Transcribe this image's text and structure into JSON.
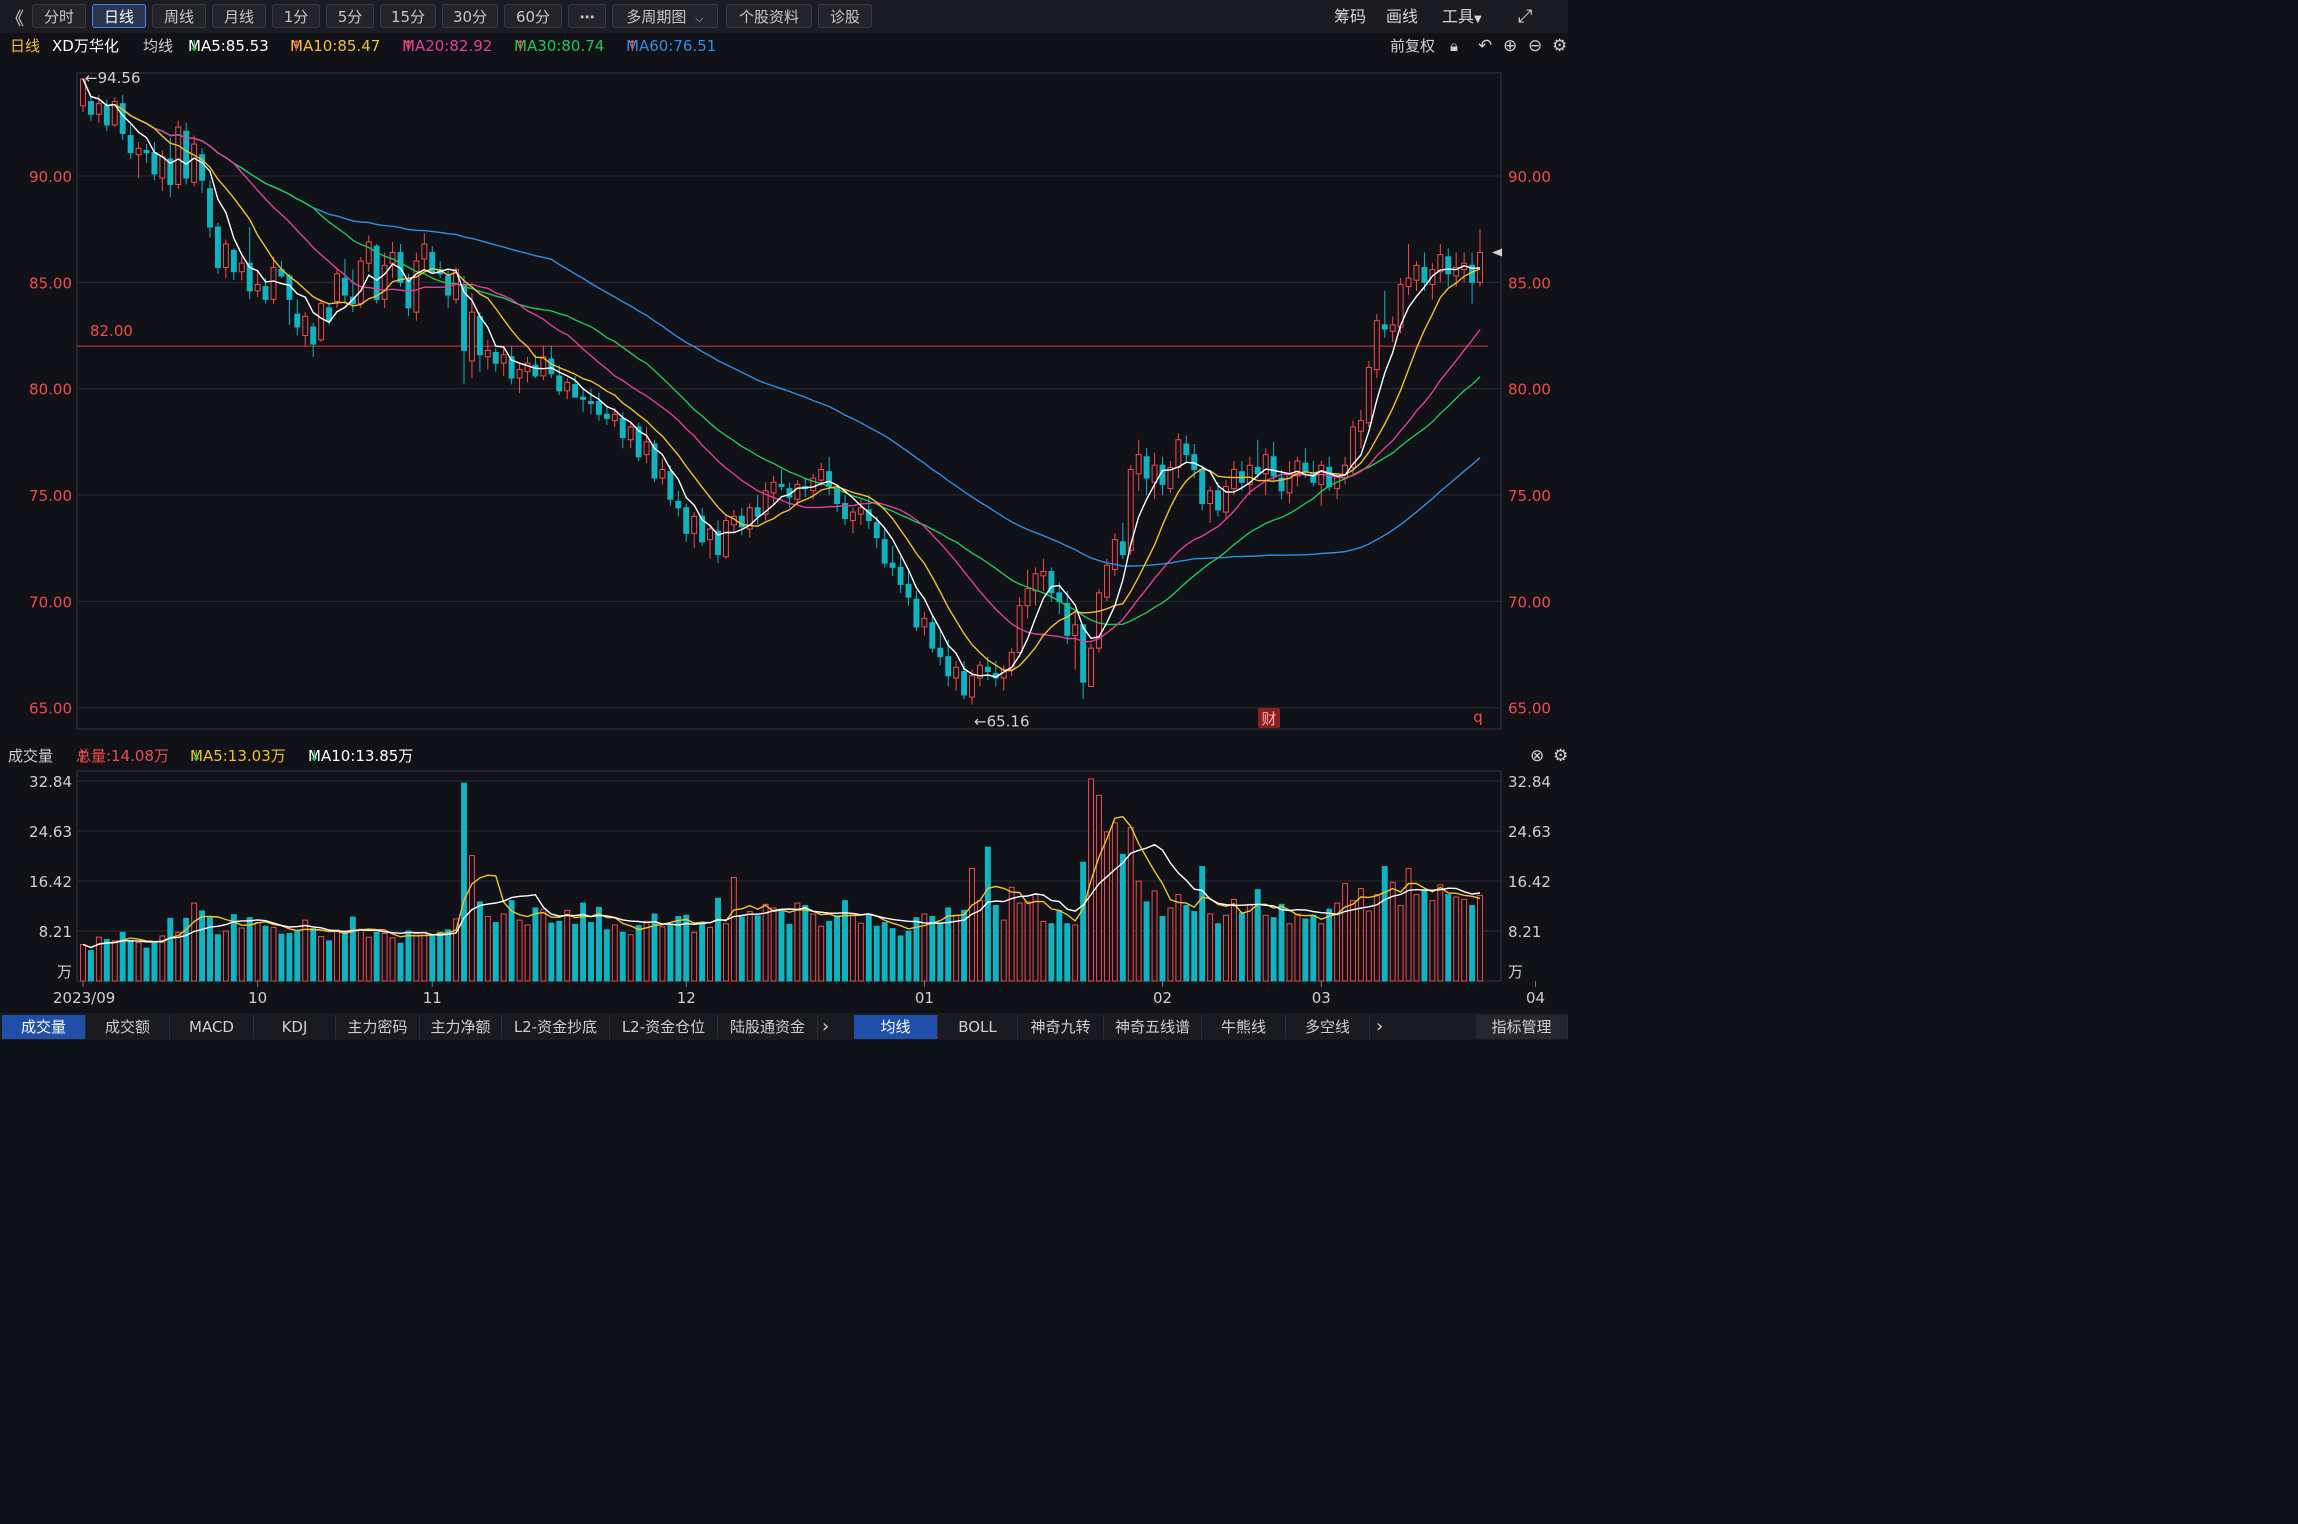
{
  "toolbar": {
    "back_icon": "double-left-chevron-icon",
    "periods": [
      "分时",
      "日线",
      "周线",
      "月线",
      "1分",
      "5分",
      "15分",
      "30分",
      "60分"
    ],
    "active_period": "日线",
    "more_label": "⋯",
    "multi_period": "多周期图",
    "stock_info": "个股资料",
    "diagnose": "诊股",
    "chips": "筹码",
    "draw": "画线",
    "tools": "工具",
    "fullscreen_icon": "expand-icon"
  },
  "legend": {
    "period": "日线",
    "stock_name": "XD万华化",
    "ma_label": "均线",
    "ma5": "MA5:85.53",
    "ma10": "MA10:85.47",
    "ma20": "MA20:82.92",
    "ma30": "MA30:80.74",
    "ma60": "MA60:76.51",
    "ma5_arrow": "↓",
    "ma10_arrow": "↑",
    "ma20_arrow": "↑",
    "ma30_arrow": "↑",
    "ma60_arrow": "↑",
    "adjust": "前复权",
    "colors": {
      "ma5": "#ffffff",
      "ma10": "#f2c12e",
      "ma20": "#e0409a",
      "ma30": "#1fc75a",
      "ma60": "#2f8ee8",
      "up": "#f24b4b",
      "down": "#11b3c0"
    }
  },
  "price_panel": {
    "y_ticks": [
      "90.00",
      "85.00",
      "80.00",
      "75.00",
      "70.00",
      "65.00"
    ],
    "high_label": "←94.56",
    "low_label": "←65.16",
    "hline_label": "82.00",
    "badge_cai": "财",
    "badge_q": "q"
  },
  "volume_panel": {
    "title": "成交量",
    "total": "总量:14.08万",
    "total_arrow": "↑",
    "ma5": "MA5:13.03万",
    "ma5_arrow": "↓",
    "ma10": "MA10:13.85万",
    "ma10_arrow": "↓",
    "y_ticks": [
      "32.84",
      "24.63",
      "16.42",
      "8.21",
      "万"
    ]
  },
  "x_axis": [
    "2023/09",
    "10",
    "11",
    "12",
    "01",
    "02",
    "03",
    "04"
  ],
  "tabs_left": [
    "成交量",
    "成交额",
    "MACD",
    "KDJ",
    "主力密码",
    "主力净额",
    "L2-资金抄底",
    "L2-资金仓位",
    "陆股通资金"
  ],
  "tabs_right": [
    "均线",
    "BOLL",
    "神奇九转",
    "神奇五线谱",
    "牛熊线",
    "多空线"
  ],
  "indicator_manage": "指标管理",
  "chart_data": {
    "type": "candlestick",
    "price_range": [
      64,
      95.5
    ],
    "volume_max": 34.5,
    "candles": [
      [
        93.3,
        94.6,
        93.0,
        94.56,
        6.0
      ],
      [
        93.5,
        93.8,
        92.6,
        92.9,
        5.0
      ],
      [
        92.9,
        93.8,
        92.5,
        93.4,
        7.2
      ],
      [
        93.3,
        93.6,
        92.1,
        92.4,
        6.8
      ],
      [
        92.4,
        93.7,
        92.3,
        93.5,
        6.6
      ],
      [
        93.4,
        93.8,
        91.7,
        92.0,
        8.0
      ],
      [
        91.9,
        92.4,
        90.8,
        91.1,
        6.6
      ],
      [
        91.0,
        91.6,
        89.9,
        91.3,
        6.3
      ],
      [
        91.2,
        91.5,
        90.6,
        91.1,
        5.4
      ],
      [
        91.1,
        91.6,
        89.8,
        90.1,
        6.2
      ],
      [
        89.9,
        91.2,
        89.3,
        90.9,
        7.4
      ],
      [
        90.8,
        91.8,
        89.0,
        89.6,
        10.3
      ],
      [
        89.6,
        92.6,
        89.4,
        92.3,
        8.0
      ],
      [
        92.1,
        92.5,
        89.6,
        89.9,
        10.3
      ],
      [
        89.7,
        91.9,
        89.5,
        91.5,
        12.8
      ],
      [
        91.0,
        91.3,
        89.2,
        89.8,
        11.5
      ],
      [
        89.4,
        89.8,
        87.1,
        87.6,
        10.4
      ],
      [
        87.6,
        87.8,
        85.4,
        85.7,
        7.6
      ],
      [
        85.7,
        87.0,
        85.2,
        86.8,
        8.2
      ],
      [
        86.5,
        86.6,
        85.1,
        85.5,
        10.9
      ],
      [
        85.5,
        86.2,
        85.1,
        85.9,
        8.7
      ],
      [
        85.9,
        87.6,
        84.2,
        84.6,
        10.4
      ],
      [
        84.6,
        85.6,
        84.3,
        84.9,
        9.6
      ],
      [
        84.8,
        85.2,
        84.0,
        84.2,
        9.0
      ],
      [
        84.2,
        86.2,
        84.0,
        85.7,
        8.8
      ],
      [
        85.6,
        86.0,
        85.2,
        85.3,
        7.7
      ],
      [
        85.3,
        85.4,
        83.0,
        84.2,
        7.8
      ],
      [
        83.5,
        84.2,
        82.5,
        82.9,
        8.2
      ],
      [
        82.5,
        83.6,
        82.0,
        83.4,
        10.0
      ],
      [
        82.9,
        83.1,
        81.5,
        82.1,
        8.6
      ],
      [
        82.3,
        84.2,
        82.2,
        84.0,
        7.3
      ],
      [
        83.8,
        84.0,
        83.0,
        83.2,
        6.6
      ],
      [
        84.1,
        85.7,
        83.8,
        85.4,
        8.4
      ],
      [
        85.2,
        86.1,
        84.0,
        84.4,
        8.0
      ],
      [
        84.3,
        85.6,
        83.6,
        84.0,
        10.5
      ],
      [
        84.0,
        86.2,
        83.8,
        86.0,
        8.5
      ],
      [
        85.9,
        87.2,
        85.5,
        86.9,
        7.2
      ],
      [
        86.7,
        86.8,
        84.0,
        84.2,
        8.0
      ],
      [
        84.2,
        86.4,
        83.8,
        85.8,
        7.8
      ],
      [
        85.9,
        86.9,
        85.2,
        86.4,
        7.1
      ],
      [
        86.4,
        86.8,
        84.8,
        85.0,
        6.2
      ],
      [
        85.1,
        85.4,
        83.4,
        83.8,
        8.2
      ],
      [
        83.6,
        86.4,
        83.2,
        86.0,
        7.8
      ],
      [
        86.1,
        87.3,
        85.6,
        86.8,
        8.0
      ],
      [
        86.4,
        86.7,
        85.4,
        85.5,
        7.3
      ],
      [
        85.6,
        86.0,
        85.2,
        85.4,
        8.0
      ],
      [
        85.3,
        85.6,
        83.8,
        84.4,
        8.4
      ],
      [
        84.2,
        85.7,
        84.0,
        85.6,
        10.2
      ],
      [
        84.9,
        85.3,
        80.2,
        81.8,
        32.5
      ],
      [
        81.3,
        84.5,
        80.5,
        83.6,
        20.6
      ],
      [
        83.4,
        83.6,
        80.8,
        81.6,
        13.0
      ],
      [
        81.5,
        82.3,
        80.9,
        81.8,
        10.6
      ],
      [
        81.7,
        81.9,
        80.8,
        81.2,
        9.6
      ],
      [
        81.2,
        81.9,
        80.6,
        81.6,
        11.0
      ],
      [
        81.5,
        82.0,
        80.2,
        80.5,
        13.2
      ],
      [
        80.5,
        81.2,
        79.8,
        80.9,
        10.0
      ],
      [
        80.8,
        81.5,
        80.3,
        81.2,
        9.2
      ],
      [
        81.1,
        81.6,
        80.5,
        80.6,
        12.0
      ],
      [
        80.6,
        82.0,
        80.4,
        81.5,
        11.8
      ],
      [
        81.4,
        82.0,
        80.5,
        80.7,
        9.5
      ],
      [
        80.6,
        81.1,
        79.7,
        79.9,
        9.8
      ],
      [
        79.9,
        80.5,
        79.5,
        80.3,
        11.6
      ],
      [
        80.2,
        80.6,
        79.6,
        79.6,
        9.3
      ],
      [
        79.6,
        80.0,
        78.9,
        79.5,
        12.8
      ],
      [
        79.4,
        80.0,
        78.8,
        79.3,
        9.6
      ],
      [
        79.4,
        79.8,
        78.5,
        78.8,
        12.1
      ],
      [
        78.8,
        79.2,
        78.3,
        78.6,
        8.4
      ],
      [
        78.5,
        79.1,
        78.2,
        78.8,
        9.2
      ],
      [
        78.6,
        78.9,
        77.2,
        77.7,
        8.0
      ],
      [
        77.6,
        78.4,
        77.2,
        78.2,
        7.6
      ],
      [
        78.2,
        78.4,
        76.6,
        76.8,
        9.1
      ],
      [
        76.9,
        78.2,
        76.5,
        77.5,
        9.8
      ],
      [
        77.4,
        77.6,
        75.6,
        75.8,
        11.0
      ],
      [
        75.8,
        76.7,
        75.5,
        76.2,
        8.9
      ],
      [
        76.1,
        76.4,
        74.5,
        74.8,
        9.3
      ],
      [
        74.7,
        75.2,
        74.0,
        74.4,
        10.6
      ],
      [
        74.4,
        74.6,
        72.8,
        73.2,
        10.8
      ],
      [
        73.2,
        74.2,
        72.5,
        74.0,
        8.0
      ],
      [
        74.0,
        74.4,
        72.6,
        72.8,
        9.6
      ],
      [
        72.9,
        73.6,
        72.0,
        73.4,
        8.8
      ],
      [
        73.3,
        73.8,
        71.8,
        72.2,
        13.6
      ],
      [
        72.1,
        74.0,
        72.0,
        73.8,
        9.4
      ],
      [
        73.6,
        74.3,
        73.3,
        74.0,
        17.0
      ],
      [
        74.0,
        74.4,
        73.1,
        73.5,
        10.5
      ],
      [
        73.4,
        74.6,
        73.0,
        74.4,
        11.4
      ],
      [
        74.4,
        75.0,
        73.6,
        74.0,
        10.7
      ],
      [
        74.1,
        75.6,
        73.8,
        75.2,
        12.6
      ],
      [
        75.1,
        75.9,
        74.6,
        75.6,
        12.0
      ],
      [
        75.5,
        76.2,
        75.2,
        75.4,
        11.8
      ],
      [
        75.3,
        75.6,
        74.4,
        74.9,
        9.3
      ],
      [
        74.8,
        75.7,
        74.5,
        75.5,
        12.8
      ],
      [
        75.4,
        75.8,
        74.9,
        75.3,
        12.4
      ],
      [
        75.2,
        76.0,
        74.8,
        75.8,
        11.0
      ],
      [
        75.7,
        76.5,
        75.4,
        76.2,
        9.0
      ],
      [
        76.1,
        76.8,
        75.0,
        75.4,
        9.8
      ],
      [
        75.3,
        75.5,
        74.2,
        74.6,
        10.7
      ],
      [
        74.6,
        75.0,
        73.6,
        73.9,
        13.2
      ],
      [
        73.8,
        74.4,
        73.2,
        74.2,
        11.0
      ],
      [
        74.1,
        74.8,
        73.6,
        74.4,
        9.5
      ],
      [
        74.3,
        75.0,
        73.4,
        73.8,
        10.8
      ],
      [
        73.7,
        74.0,
        72.5,
        73.0,
        9.0
      ],
      [
        72.9,
        73.4,
        71.6,
        71.8,
        9.6
      ],
      [
        71.8,
        72.6,
        71.2,
        71.6,
        8.6
      ],
      [
        71.6,
        72.1,
        70.4,
        70.8,
        7.4
      ],
      [
        70.8,
        71.5,
        69.8,
        70.2,
        8.2
      ],
      [
        70.1,
        70.5,
        68.6,
        68.8,
        10.4
      ],
      [
        68.8,
        69.5,
        68.4,
        69.2,
        11.0
      ],
      [
        69.0,
        69.3,
        67.6,
        67.8,
        10.6
      ],
      [
        67.8,
        68.6,
        67.0,
        67.4,
        9.4
      ],
      [
        67.4,
        68.2,
        66.0,
        66.5,
        12.0
      ],
      [
        66.4,
        67.2,
        65.8,
        66.9,
        10.8
      ],
      [
        66.7,
        67.2,
        65.4,
        65.6,
        11.6
      ],
      [
        65.5,
        66.8,
        65.16,
        66.5,
        18.5
      ],
      [
        66.4,
        67.2,
        66.0,
        67.0,
        13.2
      ],
      [
        66.9,
        67.4,
        66.3,
        66.7,
        22.0
      ],
      [
        66.6,
        67.2,
        66.0,
        66.4,
        12.4
      ],
      [
        66.4,
        67.0,
        65.8,
        66.8,
        10.0
      ],
      [
        66.8,
        67.8,
        66.5,
        67.6,
        15.4
      ],
      [
        67.6,
        70.2,
        67.4,
        69.8,
        12.8
      ],
      [
        69.8,
        71.5,
        69.2,
        70.6,
        13.0
      ],
      [
        70.5,
        71.6,
        69.8,
        71.3,
        14.2
      ],
      [
        71.2,
        72.0,
        70.5,
        71.4,
        9.8
      ],
      [
        71.4,
        71.6,
        70.0,
        70.4,
        9.4
      ],
      [
        70.4,
        70.9,
        69.4,
        70.0,
        11.6
      ],
      [
        69.9,
        70.5,
        68.0,
        68.4,
        9.4
      ],
      [
        68.4,
        69.5,
        66.8,
        68.9,
        9.2
      ],
      [
        68.9,
        68.9,
        65.4,
        66.2,
        19.5
      ],
      [
        66.0,
        68.0,
        66.0,
        67.8,
        33.2
      ],
      [
        67.8,
        70.6,
        67.6,
        70.4,
        30.5
      ],
      [
        70.2,
        72.0,
        70.0,
        71.7,
        24.5
      ],
      [
        71.5,
        73.2,
        71.2,
        72.9,
        26.0
      ],
      [
        72.8,
        73.7,
        72.0,
        72.2,
        20.8
      ],
      [
        72.4,
        76.4,
        72.2,
        76.2,
        25.2
      ],
      [
        76.0,
        77.6,
        75.2,
        76.9,
        16.4
      ],
      [
        76.8,
        77.2,
        75.0,
        75.8,
        13.0
      ],
      [
        75.6,
        77.0,
        74.8,
        76.4,
        14.8
      ],
      [
        76.4,
        76.8,
        75.0,
        75.5,
        10.6
      ],
      [
        75.3,
        76.6,
        75.1,
        76.3,
        12.0
      ],
      [
        76.3,
        77.9,
        75.8,
        77.6,
        14.2
      ],
      [
        77.4,
        77.8,
        76.5,
        76.9,
        12.4
      ],
      [
        76.9,
        77.4,
        75.8,
        76.2,
        11.4
      ],
      [
        76.2,
        76.4,
        74.3,
        74.6,
        18.8
      ],
      [
        74.6,
        75.4,
        73.7,
        75.2,
        11.0
      ],
      [
        75.2,
        75.6,
        74.0,
        74.3,
        9.4
      ],
      [
        74.2,
        75.7,
        73.9,
        75.4,
        10.8
      ],
      [
        75.3,
        76.6,
        75.0,
        76.2,
        13.4
      ],
      [
        76.1,
        76.6,
        75.2,
        75.6,
        11.2
      ],
      [
        75.5,
        76.8,
        75.0,
        76.4,
        12.6
      ],
      [
        76.3,
        77.6,
        75.8,
        76.0,
        15.0
      ],
      [
        76.0,
        77.2,
        75.0,
        76.9,
        10.8
      ],
      [
        76.8,
        77.5,
        75.6,
        75.9,
        10.4
      ],
      [
        75.8,
        76.2,
        74.8,
        75.2,
        12.6
      ],
      [
        75.1,
        76.6,
        74.6,
        76.0,
        9.4
      ],
      [
        75.9,
        76.8,
        75.4,
        76.6,
        11.0
      ],
      [
        76.5,
        77.2,
        75.8,
        76.1,
        10.2
      ],
      [
        76.0,
        76.6,
        75.4,
        75.6,
        10.8
      ],
      [
        75.5,
        76.6,
        74.5,
        76.4,
        9.4
      ],
      [
        76.3,
        76.8,
        75.2,
        75.4,
        11.8
      ],
      [
        75.3,
        76.0,
        74.8,
        75.9,
        12.8
      ],
      [
        75.8,
        76.8,
        75.5,
        76.4,
        16.0
      ],
      [
        76.3,
        78.5,
        76.0,
        78.2,
        13.2
      ],
      [
        78.0,
        79.0,
        77.2,
        78.5,
        15.2
      ],
      [
        78.4,
        81.3,
        78.2,
        81.0,
        11.5
      ],
      [
        80.9,
        83.5,
        80.5,
        83.2,
        14.2
      ],
      [
        83.0,
        84.6,
        82.4,
        82.8,
        18.8
      ],
      [
        82.7,
        83.4,
        82.2,
        83.0,
        16.2
      ],
      [
        82.9,
        85.2,
        82.6,
        84.9,
        12.4
      ],
      [
        84.8,
        86.8,
        84.4,
        85.2,
        18.5
      ],
      [
        85.1,
        86.0,
        84.6,
        85.8,
        14.2
      ],
      [
        85.7,
        86.4,
        84.6,
        85.0,
        15.0
      ],
      [
        84.9,
        85.9,
        84.2,
        85.6,
        13.2
      ],
      [
        85.5,
        86.8,
        85.0,
        86.3,
        15.8
      ],
      [
        86.2,
        86.6,
        84.8,
        85.4,
        14.2
      ],
      [
        85.3,
        86.4,
        84.8,
        85.7,
        13.8
      ],
      [
        85.6,
        86.4,
        85.0,
        85.9,
        13.4
      ],
      [
        85.8,
        86.4,
        84.0,
        85.0,
        12.4
      ],
      [
        85.0,
        87.5,
        84.8,
        86.4,
        14.08
      ]
    ]
  }
}
